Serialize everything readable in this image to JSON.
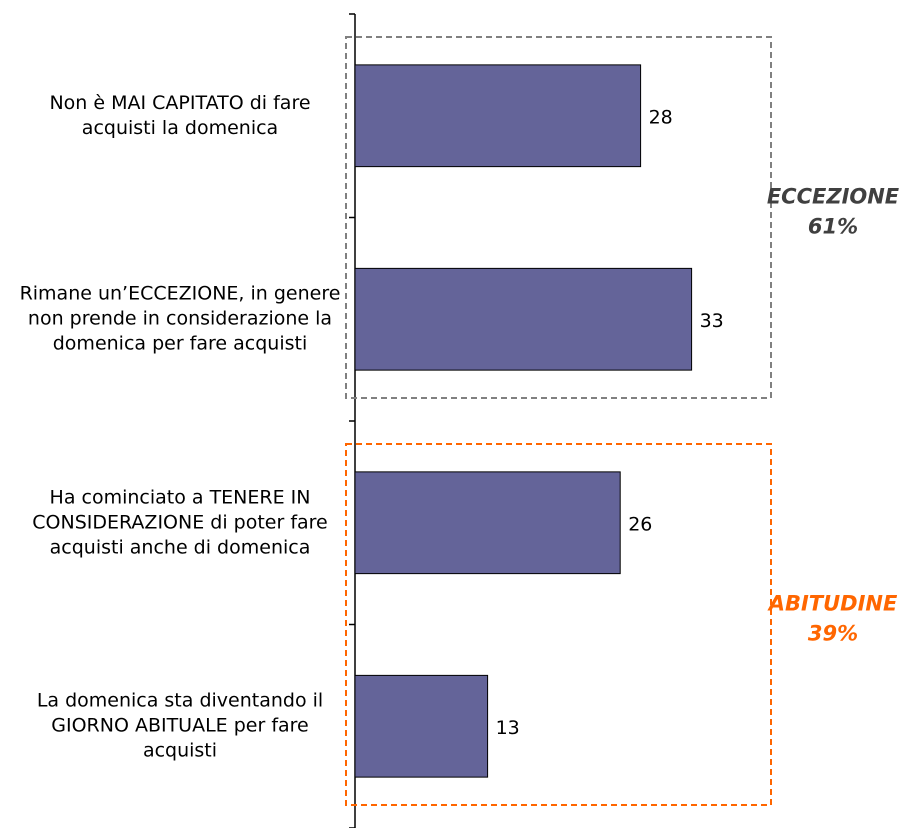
{
  "chart_data": {
    "type": "bar",
    "orientation": "horizontal",
    "color": "#646499",
    "categories": [
      "Non è MAI CAPITATO di fare acquisti la domenica",
      "Rimane un’ECCEZIONE, in genere non prende in considerazione la domenica per fare acquisti",
      "Ha cominciato a TENERE IN CONSIDERAZIONE di poter fare acquisti anche di domenica",
      "La domenica sta diventando il GIORNO ABITUALE per fare acquisti"
    ],
    "values": [
      28,
      33,
      26,
      13
    ],
    "xlim": [
      0,
      50
    ],
    "annotations": [
      {
        "lines": [
          "ECCEZIONE",
          "61%"
        ],
        "color": "#404040",
        "box_color": "#808080",
        "from": 0,
        "to": 1
      },
      {
        "lines": [
          "ABITUDINE",
          "39%"
        ],
        "color": "#ff6600",
        "box_color": "#ff6600",
        "from": 2,
        "to": 3
      }
    ]
  }
}
